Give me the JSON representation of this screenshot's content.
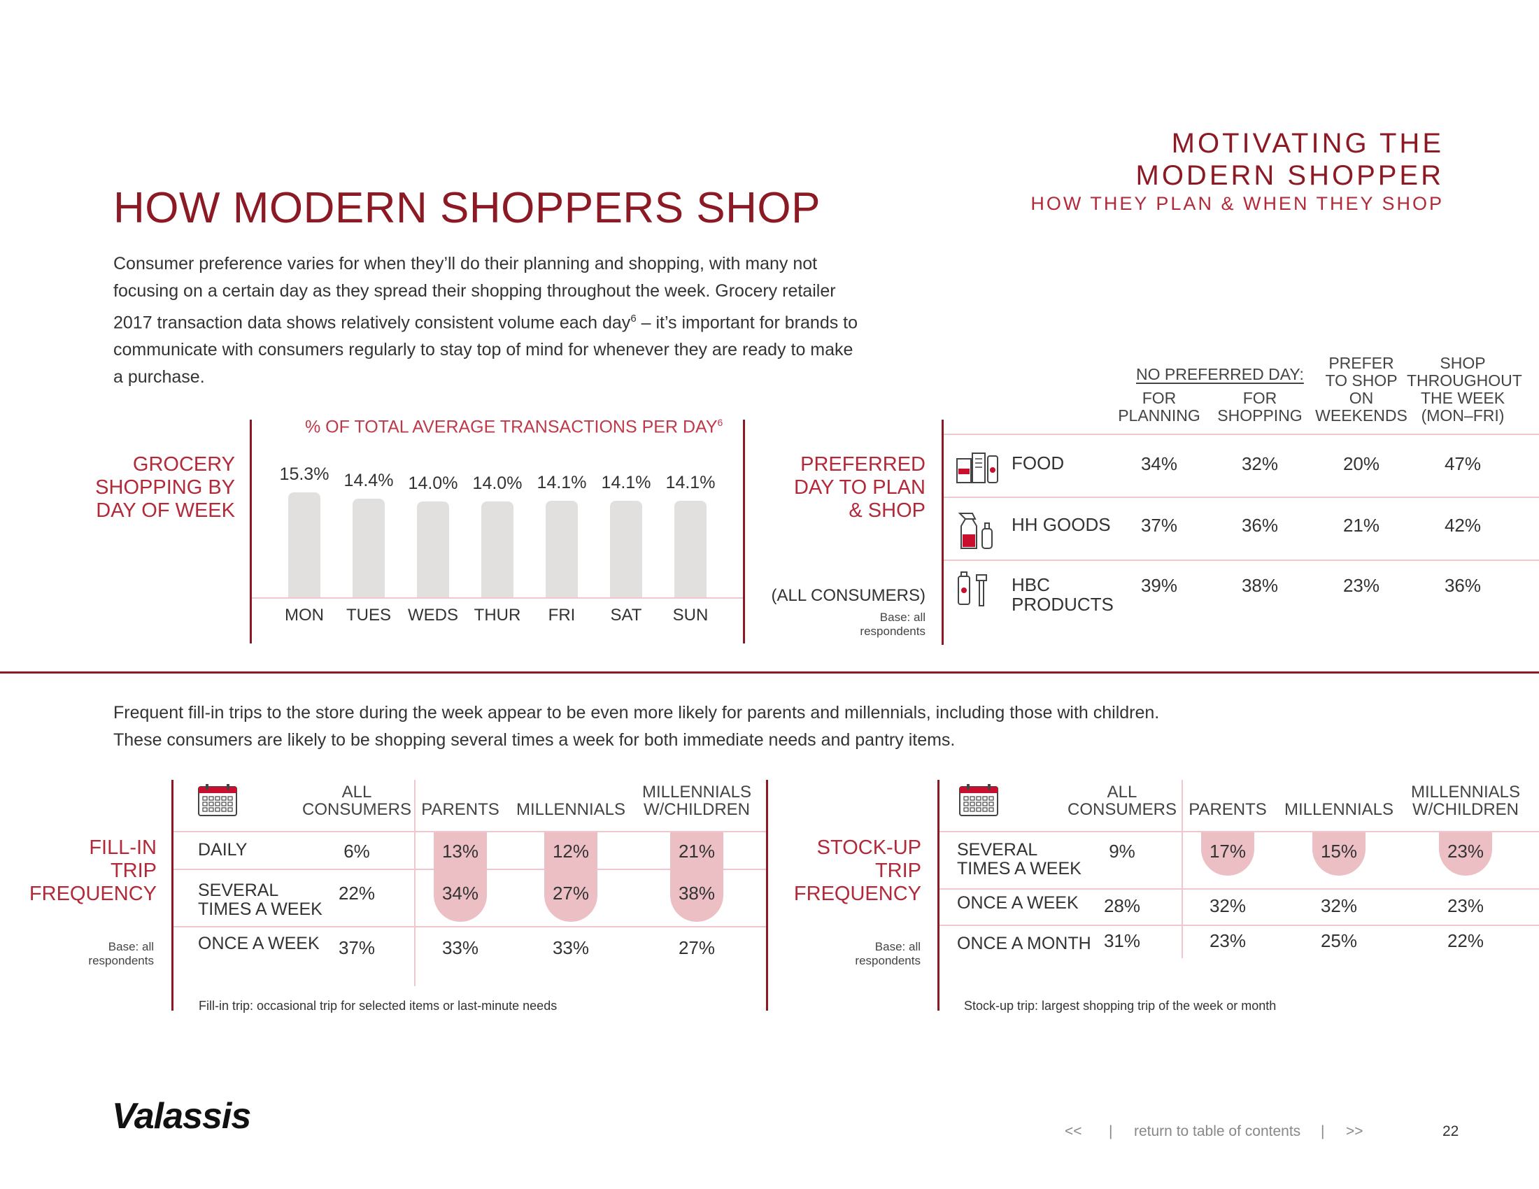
{
  "header": {
    "title_line1": "MOTIVATING THE",
    "title_line2": "MODERN SHOPPER",
    "subtitle": "HOW THEY PLAN & WHEN THEY SHOP"
  },
  "page_title": "HOW MODERN SHOPPERS SHOP",
  "intro_text": "Consumer preference varies for when they’ll do their planning and shopping, with many not focusing on a certain day as they spread their shopping throughout the week. Grocery retailer 2017 transaction data shows relatively consistent volume each day",
  "intro_sup": "6",
  "intro_text_end": " – it’s important for brands to communicate with consumers regularly to stay top of mind for whenever they are ready to make a purchase.",
  "grocery": {
    "label_lines": [
      "GROCERY",
      "SHOPPING BY",
      "DAY OF WEEK"
    ]
  },
  "chart_data": {
    "type": "bar",
    "title": "% OF TOTAL AVERAGE TRANSACTIONS PER DAY",
    "title_sup": "6",
    "categories": [
      "MON",
      "TUES",
      "WEDS",
      "THUR",
      "FRI",
      "SAT",
      "SUN"
    ],
    "values": [
      15.3,
      14.4,
      14.0,
      14.0,
      14.1,
      14.1,
      14.1
    ],
    "value_labels": [
      "15.3%",
      "14.4%",
      "14.0%",
      "14.0%",
      "14.1%",
      "14.1%",
      "14.1%"
    ],
    "colors": {
      "bar": "#e2dfdf",
      "baseline": "#f0c7cd"
    }
  },
  "preferred": {
    "label_lines": [
      "PREFERRED",
      "DAY TO PLAN",
      "& SHOP"
    ],
    "sub_label": "(ALL CONSUMERS)",
    "base_lines": [
      "Base: all",
      "respondents"
    ],
    "group_header": "NO PREFERRED DAY:",
    "columns": [
      [
        "FOR",
        "PLANNING"
      ],
      [
        "FOR",
        "SHOPPING"
      ],
      [
        "PREFER",
        "TO SHOP",
        "ON",
        "WEEKENDS"
      ],
      [
        "SHOP",
        "THROUGHOUT",
        "THE WEEK",
        "(MON–FRI)"
      ]
    ],
    "rows": [
      {
        "icon": "food-icon",
        "label": [
          "FOOD"
        ],
        "values": [
          "34%",
          "32%",
          "20%",
          "47%"
        ]
      },
      {
        "icon": "spray-bottle-icon",
        "label": [
          "HH GOODS"
        ],
        "values": [
          "37%",
          "36%",
          "21%",
          "42%"
        ]
      },
      {
        "icon": "hbc-products-icon",
        "label": [
          "HBC",
          "PRODUCTS"
        ],
        "values": [
          "39%",
          "38%",
          "23%",
          "36%"
        ]
      }
    ]
  },
  "intro2_lines": [
    "Frequent fill-in trips to the store during the week appear to be even more likely for parents and millennials, including those with children.",
    "These consumers are likely to be shopping several times a week for both immediate needs and pantry items."
  ],
  "fillin": {
    "label_lines": [
      "FILL-IN",
      "TRIP",
      "FREQUENCY"
    ],
    "base_lines": [
      "Base: all",
      "respondents"
    ],
    "columns": [
      [
        "ALL",
        "CONSUMERS"
      ],
      [
        "PARENTS"
      ],
      [
        "MILLENNIALS"
      ],
      [
        "MILLENNIALS",
        "W/CHILDREN"
      ]
    ],
    "rows": [
      {
        "label": [
          "DAILY"
        ],
        "values": [
          "6%",
          "13%",
          "12%",
          "21%"
        ]
      },
      {
        "label": [
          "SEVERAL",
          "TIMES A WEEK"
        ],
        "values": [
          "22%",
          "34%",
          "27%",
          "38%"
        ]
      },
      {
        "label": [
          "ONCE A WEEK"
        ],
        "values": [
          "37%",
          "33%",
          "33%",
          "27%"
        ]
      }
    ],
    "footnote": "Fill-in trip: occasional trip for selected items or last-minute needs"
  },
  "stockup": {
    "label_lines": [
      "STOCK-UP",
      "TRIP",
      "FREQUENCY"
    ],
    "base_lines": [
      "Base: all",
      "respondents"
    ],
    "columns": [
      [
        "ALL",
        "CONSUMERS"
      ],
      [
        "PARENTS"
      ],
      [
        "MILLENNIALS"
      ],
      [
        "MILLENNIALS",
        "W/CHILDREN"
      ]
    ],
    "rows": [
      {
        "label": [
          "SEVERAL",
          "TIMES A WEEK"
        ],
        "values": [
          "9%",
          "17%",
          "15%",
          "23%"
        ]
      },
      {
        "label": [
          "ONCE A WEEK"
        ],
        "values": [
          "28%",
          "32%",
          "32%",
          "23%"
        ]
      },
      {
        "label": [
          "ONCE A MONTH"
        ],
        "values": [
          "31%",
          "23%",
          "25%",
          "22%"
        ]
      }
    ],
    "footnote": "Stock-up trip: largest shopping trip of the week or month"
  },
  "footer": {
    "logo": "Valassis",
    "prev": "<<",
    "sep": "|",
    "toc": "return to table of contents",
    "next": ">>",
    "page_number": "22"
  },
  "colors": {
    "brand_red": "#8b1a25",
    "accent_red": "#b22a3a",
    "pill_pink": "#ecbfc5",
    "rule_pink": "#f0c7cd"
  }
}
